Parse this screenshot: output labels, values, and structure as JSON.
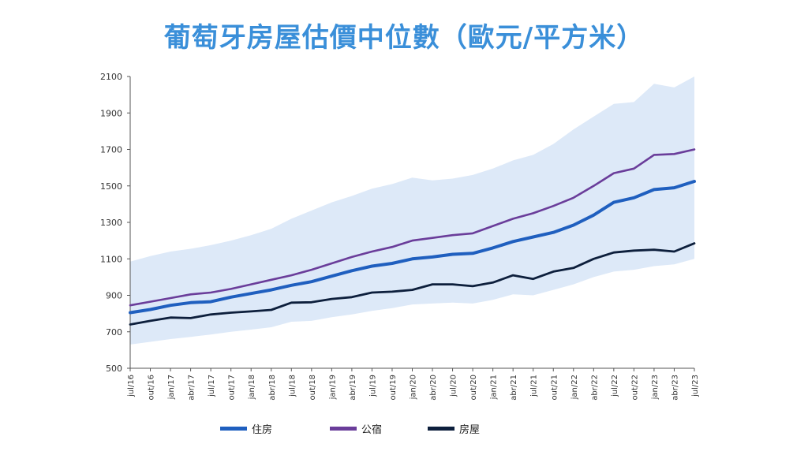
{
  "title": "葡萄牙房屋估價中位數（歐元/平方米）",
  "colors": {
    "band": "#dde9f8",
    "housing": "#1f5fbf",
    "apartments": "#6a3d9a",
    "houses": "#0d1f3c",
    "axis": "#555555",
    "title": "#3a8fd9"
  },
  "chart_data": {
    "type": "line",
    "ylim": [
      500,
      2100
    ],
    "yticks": [
      500,
      700,
      900,
      1100,
      1300,
      1500,
      1700,
      1900,
      2100
    ],
    "xticks": [
      "jul/16",
      "out/16",
      "jan/17",
      "abr/17",
      "jul/17",
      "out/17",
      "jan/18",
      "abr/18",
      "jul/18",
      "out/18",
      "jan/19",
      "abr/19",
      "jul/19",
      "out/19",
      "jan/20",
      "abr/20",
      "jul/20",
      "out/20",
      "jan/21",
      "abr/21",
      "jul/21",
      "out/21",
      "jan/22",
      "abr/22",
      "jul/22",
      "out/22",
      "jan/23",
      "abr/23",
      "jul/23"
    ],
    "grid": false,
    "legend_position": "bottom",
    "series": [
      {
        "name": "住房",
        "key": "housing",
        "values": [
          805,
          822,
          845,
          860,
          865,
          890,
          910,
          930,
          955,
          975,
          1005,
          1035,
          1060,
          1075,
          1100,
          1110,
          1125,
          1130,
          1160,
          1195,
          1220,
          1245,
          1285,
          1340,
          1410,
          1435,
          1480,
          1490,
          1525
        ]
      },
      {
        "name": "公宿",
        "key": "apartments",
        "values": [
          845,
          865,
          885,
          905,
          915,
          935,
          960,
          985,
          1010,
          1040,
          1075,
          1110,
          1140,
          1165,
          1200,
          1215,
          1230,
          1240,
          1280,
          1320,
          1350,
          1390,
          1435,
          1500,
          1570,
          1595,
          1670,
          1675,
          1700
        ]
      },
      {
        "name": "房屋",
        "key": "houses",
        "values": [
          740,
          760,
          778,
          775,
          795,
          805,
          812,
          820,
          860,
          862,
          880,
          890,
          915,
          920,
          930,
          960,
          960,
          950,
          970,
          1010,
          990,
          1030,
          1050,
          1100,
          1135,
          1145,
          1150,
          1140,
          1185
        ]
      }
    ],
    "band": {
      "upper": [
        1085,
        1115,
        1140,
        1155,
        1175,
        1200,
        1230,
        1265,
        1320,
        1365,
        1410,
        1445,
        1485,
        1510,
        1545,
        1530,
        1540,
        1560,
        1595,
        1640,
        1670,
        1730,
        1810,
        1880,
        1950,
        1960,
        2060,
        2040,
        2100
      ],
      "lower": [
        630,
        645,
        660,
        672,
        685,
        700,
        712,
        725,
        755,
        760,
        780,
        795,
        815,
        830,
        850,
        855,
        860,
        855,
        875,
        905,
        900,
        930,
        960,
        1000,
        1030,
        1040,
        1060,
        1070,
        1100
      ]
    }
  }
}
